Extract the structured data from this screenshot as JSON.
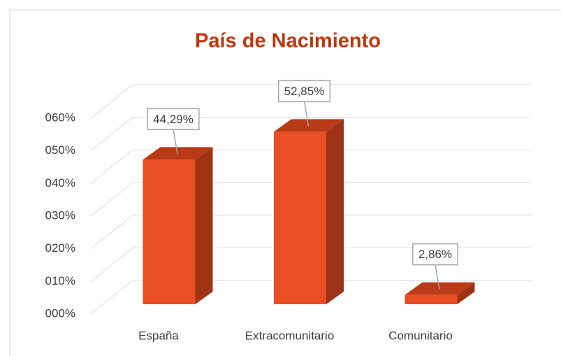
{
  "chart_data": {
    "type": "bar3d",
    "title": "País de Nacimiento",
    "categories": [
      "España",
      "Extracomunitario",
      "Comunitario"
    ],
    "values": [
      44.29,
      52.85,
      2.86
    ],
    "value_labels": [
      "44,29%",
      "52,85%",
      "2,86%"
    ],
    "color": "#e94e24",
    "ylim": [
      0,
      60
    ],
    "yticks": [
      {
        "value": 0,
        "label": "000%"
      },
      {
        "value": 10,
        "label": "010%"
      },
      {
        "value": 20,
        "label": "020%"
      },
      {
        "value": 30,
        "label": "030%"
      },
      {
        "value": 40,
        "label": "040%"
      },
      {
        "value": 50,
        "label": "050%"
      },
      {
        "value": 60,
        "label": "060%"
      }
    ],
    "grid": true
  }
}
